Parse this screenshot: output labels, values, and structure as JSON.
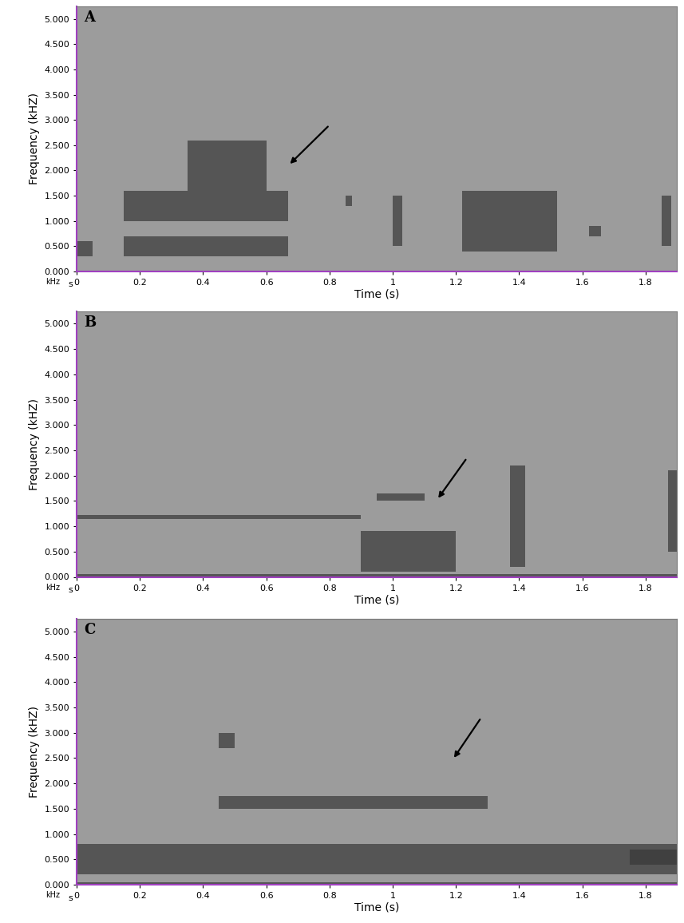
{
  "chart_data": [
    {
      "type": "spectrogram",
      "title": "A",
      "x_label": "Time (s)",
      "y_label": "Frequency (kHZ)",
      "annotations": [
        "kHz",
        "s"
      ],
      "xlim": [
        0,
        1.9
      ],
      "xticks": [
        0,
        0.2,
        0.4,
        0.6,
        0.8,
        1,
        1.2,
        1.4,
        1.6,
        1.8
      ],
      "ylim": [
        0,
        5.25
      ],
      "yticks": [
        {
          "value": 0,
          "label": "0.000"
        },
        {
          "value": 0.5,
          "label": "0.500"
        },
        {
          "value": 1,
          "label": "1.000"
        },
        {
          "value": 1.5,
          "label": "1.500"
        },
        {
          "value": 2,
          "label": "2.000"
        },
        {
          "value": 2.5,
          "label": "2.500"
        },
        {
          "value": 3,
          "label": "3.000"
        },
        {
          "value": 3.5,
          "label": "3.500"
        },
        {
          "value": 4,
          "label": "4.000"
        },
        {
          "value": 4.5,
          "label": "4.500"
        },
        {
          "value": 5,
          "label": "5.000"
        }
      ],
      "events": [
        {
          "time": [
            0.0,
            0.05
          ],
          "frequency": [
            0.3,
            0.6
          ]
        },
        {
          "time": [
            0.15,
            0.67
          ],
          "frequency": [
            0.3,
            0.7
          ]
        },
        {
          "time": [
            0.15,
            0.67
          ],
          "frequency": [
            1.0,
            1.6
          ]
        },
        {
          "time": [
            0.35,
            0.6
          ],
          "frequency": [
            1.6,
            2.6
          ]
        },
        {
          "time": [
            0.85,
            0.87
          ],
          "frequency": [
            1.3,
            1.5
          ]
        },
        {
          "time": [
            1.0,
            1.03
          ],
          "frequency": [
            0.5,
            1.5
          ]
        },
        {
          "time": [
            1.22,
            1.52
          ],
          "frequency": [
            0.4,
            1.6
          ]
        },
        {
          "time": [
            1.62,
            1.66
          ],
          "frequency": [
            0.7,
            0.9
          ]
        },
        {
          "time": [
            1.85,
            1.88
          ],
          "frequency": [
            0.5,
            1.5
          ]
        }
      ]
    },
    {
      "type": "spectrogram",
      "title": "B",
      "x_label": "Time (s)",
      "y_label": "Frequency (kHZ)",
      "annotations": [
        "kHz",
        "s"
      ],
      "xlim": [
        0,
        1.9
      ],
      "xticks": [
        0,
        0.2,
        0.4,
        0.6,
        0.8,
        1,
        1.2,
        1.4,
        1.6,
        1.8
      ],
      "ylim": [
        0,
        5.25
      ],
      "yticks": [
        {
          "value": 0,
          "label": "0.000"
        },
        {
          "value": 0.5,
          "label": "0.500"
        },
        {
          "value": 1,
          "label": "1.000"
        },
        {
          "value": 1.5,
          "label": "1.500"
        },
        {
          "value": 2,
          "label": "2.000"
        },
        {
          "value": 2.5,
          "label": "2.500"
        },
        {
          "value": 3,
          "label": "3.000"
        },
        {
          "value": 3.5,
          "label": "3.500"
        },
        {
          "value": 4,
          "label": "4.000"
        },
        {
          "value": 4.5,
          "label": "4.500"
        },
        {
          "value": 5,
          "label": "5.000"
        }
      ],
      "events": [
        {
          "time": [
            0.0,
            1.9
          ],
          "frequency": [
            0.0,
            0.05
          ]
        },
        {
          "time": [
            0.0,
            0.9
          ],
          "frequency": [
            1.15,
            1.22
          ]
        },
        {
          "time": [
            0.9,
            1.2
          ],
          "frequency": [
            0.1,
            0.9
          ]
        },
        {
          "time": [
            0.95,
            1.1
          ],
          "frequency": [
            1.5,
            1.65
          ]
        },
        {
          "time": [
            1.37,
            1.42
          ],
          "frequency": [
            0.2,
            2.2
          ]
        },
        {
          "time": [
            1.87,
            1.9
          ],
          "frequency": [
            0.5,
            2.1
          ]
        }
      ]
    },
    {
      "type": "spectrogram",
      "title": "C",
      "x_label": "Time (s)",
      "y_label": "Frequency (kHZ)",
      "annotations": [
        "kHz",
        "s"
      ],
      "xlim": [
        0,
        1.9
      ],
      "xticks": [
        0,
        0.2,
        0.4,
        0.6,
        0.8,
        1,
        1.2,
        1.4,
        1.6,
        1.8
      ],
      "ylim": [
        0,
        5.25
      ],
      "yticks": [
        {
          "value": 0,
          "label": "0.000"
        },
        {
          "value": 0.5,
          "label": "0.500"
        },
        {
          "value": 1,
          "label": "1.000"
        },
        {
          "value": 1.5,
          "label": "1.500"
        },
        {
          "value": 2,
          "label": "2.000"
        },
        {
          "value": 2.5,
          "label": "2.500"
        },
        {
          "value": 3,
          "label": "3.000"
        },
        {
          "value": 3.5,
          "label": "3.500"
        },
        {
          "value": 4,
          "label": "4.000"
        },
        {
          "value": 4.5,
          "label": "4.500"
        },
        {
          "value": 5,
          "label": "5.000"
        }
      ],
      "events": [
        {
          "time": [
            0.0,
            1.9
          ],
          "frequency": [
            0.0,
            0.05
          ]
        },
        {
          "time": [
            0.0,
            1.9
          ],
          "frequency": [
            0.2,
            0.8
          ]
        },
        {
          "time": [
            0.45,
            1.3
          ],
          "frequency": [
            1.5,
            1.75
          ]
        },
        {
          "time": [
            0.45,
            0.5
          ],
          "frequency": [
            2.7,
            3.0
          ]
        },
        {
          "time": [
            1.75,
            1.9
          ],
          "frequency": [
            0.4,
            0.7
          ]
        }
      ]
    }
  ]
}
